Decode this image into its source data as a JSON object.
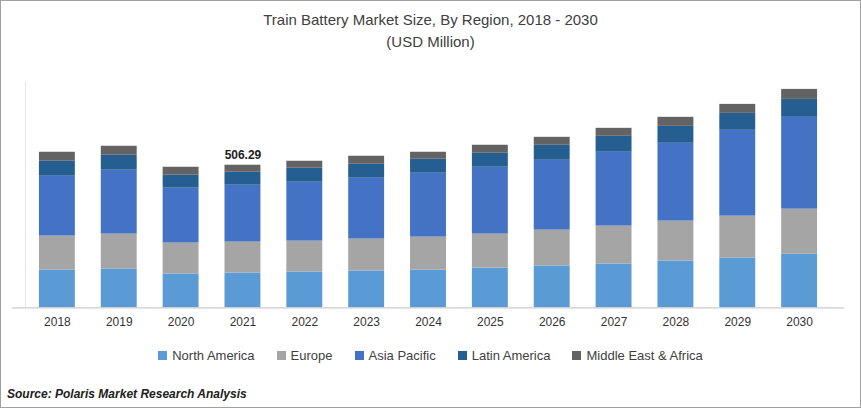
{
  "chart_data": {
    "type": "bar",
    "title": "Train Battery Market Size, By Region, 2018 - 2030",
    "subtitle": "(USD Million)",
    "source": "Source: Polaris Market Research Analysis",
    "categories": [
      "2018",
      "2019",
      "2020",
      "2021",
      "2022",
      "2023",
      "2024",
      "2025",
      "2026",
      "2027",
      "2028",
      "2029",
      "2030"
    ],
    "series": [
      {
        "name": "North America",
        "color": "#5b9bd5",
        "values": [
          134.5,
          138.1,
          120.4,
          123.9,
          127.4,
          131.0,
          134.5,
          141.6,
          148.7,
          155.8,
          166.4,
          177.0,
          191.2
        ]
      },
      {
        "name": "Europe",
        "color": "#a5a5a5",
        "values": [
          120.4,
          123.9,
          109.7,
          109.7,
          109.7,
          113.3,
          116.8,
          120.4,
          127.4,
          134.5,
          141.6,
          148.7,
          159.3
        ]
      },
      {
        "name": "Asia Pacific",
        "color": "#4472c4",
        "values": [
          212.4,
          226.6,
          194.7,
          201.8,
          208.9,
          215.9,
          226.6,
          237.2,
          247.8,
          262.0,
          276.1,
          304.4,
          325.7
        ]
      },
      {
        "name": "Latin America",
        "color": "#255e91",
        "values": [
          53.1,
          53.1,
          46.0,
          46.0,
          49.6,
          49.6,
          49.6,
          49.6,
          53.1,
          56.6,
          60.2,
          60.2,
          63.7
        ]
      },
      {
        "name": "Middle East & Africa",
        "color": "#636363",
        "values": [
          31.9,
          31.9,
          28.3,
          24.89,
          24.8,
          28.3,
          24.8,
          28.3,
          28.3,
          28.3,
          31.9,
          31.9,
          35.4
        ]
      }
    ],
    "annotations": [
      {
        "category": "2021",
        "text": "506.29"
      }
    ],
    "ylim": [
      0,
      800
    ],
    "stacked": true,
    "grid": false,
    "legend": "bottom",
    "data_labels": false,
    "tick_labels": "x"
  }
}
